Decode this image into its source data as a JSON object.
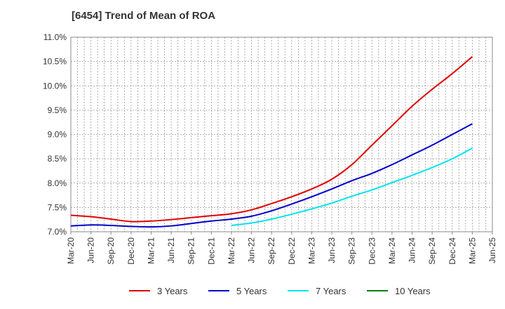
{
  "chart_data": {
    "type": "line",
    "title": "[6454]  Trend of Mean of ROA",
    "xlabel": "",
    "ylabel": "",
    "categories": [
      "Mar-20",
      "Jun-20",
      "Sep-20",
      "Dec-20",
      "Mar-21",
      "Jun-21",
      "Sep-21",
      "Dec-21",
      "Mar-22",
      "Jun-22",
      "Sep-22",
      "Dec-22",
      "Mar-23",
      "Jun-23",
      "Sep-23",
      "Dec-23",
      "Mar-24",
      "Jun-24",
      "Sep-24",
      "Dec-24",
      "Mar-25",
      "Jun-25"
    ],
    "ylim": [
      7.0,
      11.0
    ],
    "yticks": [
      "7.0%",
      "7.5%",
      "8.0%",
      "8.5%",
      "9.0%",
      "9.5%",
      "10.0%",
      "10.5%",
      "11.0%"
    ],
    "grid": true,
    "legend_position": "bottom",
    "series": [
      {
        "name": "3 Years",
        "color": "#e00000",
        "values": [
          7.34,
          7.31,
          7.26,
          7.21,
          7.22,
          7.25,
          7.29,
          7.33,
          7.37,
          7.45,
          7.58,
          7.72,
          7.88,
          8.08,
          8.38,
          8.78,
          9.18,
          9.58,
          9.93,
          10.25,
          10.6,
          null
        ]
      },
      {
        "name": "5 Years",
        "color": "#0000cc",
        "values": [
          7.12,
          7.14,
          7.13,
          7.11,
          7.1,
          7.12,
          7.17,
          7.22,
          7.26,
          7.32,
          7.43,
          7.57,
          7.72,
          7.88,
          8.05,
          8.2,
          8.38,
          8.58,
          8.78,
          9.0,
          9.22,
          null
        ]
      },
      {
        "name": "7 Years",
        "color": "#00e5ee",
        "values": [
          null,
          null,
          null,
          null,
          null,
          null,
          null,
          null,
          7.13,
          7.18,
          7.26,
          7.36,
          7.47,
          7.59,
          7.73,
          7.86,
          8.01,
          8.16,
          8.32,
          8.5,
          8.72,
          null
        ]
      },
      {
        "name": "10 Years",
        "color": "#008000",
        "values": [
          null,
          null,
          null,
          null,
          null,
          null,
          null,
          null,
          null,
          null,
          null,
          null,
          null,
          null,
          null,
          null,
          null,
          null,
          null,
          null,
          null,
          null
        ]
      }
    ]
  }
}
